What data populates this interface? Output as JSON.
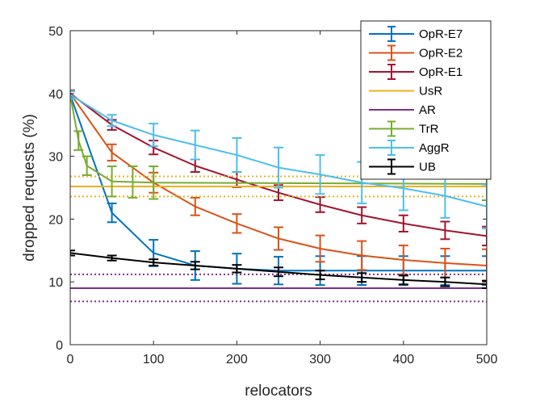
{
  "chart_data": {
    "type": "line",
    "title": "",
    "xlabel": "relocators",
    "ylabel": "dropped requests (%)",
    "xlim": [
      0,
      500
    ],
    "ylim": [
      0,
      50
    ],
    "xticks": [
      0,
      100,
      200,
      300,
      400,
      500
    ],
    "yticks": [
      0,
      10,
      20,
      30,
      40,
      50
    ],
    "grid": false,
    "legend_position": "top-right",
    "series": [
      {
        "name": "OpR-E7",
        "color": "#0072BD",
        "x": [
          0,
          50,
          100,
          150,
          200,
          250,
          300,
          350,
          400,
          450,
          500
        ],
        "y": [
          39.8,
          21,
          14.6,
          12.6,
          12.1,
          11.8,
          11.8,
          11.8,
          11.8,
          11.8,
          11.8
        ],
        "err": [
          0.6,
          1.5,
          2.1,
          2.3,
          2.4,
          2.2,
          2.3,
          2.3,
          2.3,
          2.3,
          2.3
        ]
      },
      {
        "name": "OpR-E2",
        "color": "#D95319",
        "x": [
          0,
          50,
          100,
          150,
          200,
          250,
          300,
          350,
          400,
          450,
          500
        ],
        "y": [
          40.0,
          30.6,
          25.8,
          22.0,
          19.3,
          16.9,
          15.3,
          14.2,
          13.5,
          13.0,
          12.6
        ],
        "err": [
          0.5,
          1.3,
          1.6,
          1.4,
          1.5,
          1.8,
          2.1,
          2.3,
          2.3,
          2.3,
          2.6
        ]
      },
      {
        "name": "OpR-E1",
        "color": "#A2142F",
        "x": [
          0,
          50,
          100,
          150,
          200,
          250,
          300,
          350,
          400,
          450,
          500
        ],
        "y": [
          40.0,
          35.0,
          31.4,
          28.5,
          26.3,
          24.2,
          22.3,
          20.6,
          19.3,
          18.2,
          17.3
        ],
        "err": [
          0.5,
          0.8,
          1.1,
          1.0,
          1.2,
          1.2,
          1.2,
          1.3,
          1.3,
          1.4,
          1.5
        ]
      },
      {
        "name": "UsR",
        "color": "#EDB120",
        "type": "constant",
        "y": 25.2,
        "band": [
          23.6,
          26.8
        ]
      },
      {
        "name": "AR",
        "color": "#7E2F8E",
        "type": "constant",
        "y": 9.0,
        "band": [
          6.9,
          11.2
        ]
      },
      {
        "name": "TrR",
        "color": "#77AC30",
        "x": [
          0,
          10,
          20,
          50,
          75,
          100,
          500
        ],
        "y": [
          39.8,
          32.5,
          28.5,
          26.0,
          25.9,
          25.8,
          25.6
        ],
        "err": [
          0.6,
          1.5,
          1.5,
          2.4,
          2.5,
          2.6,
          2.6
        ]
      },
      {
        "name": "AggR",
        "color": "#4DBEEE",
        "x": [
          0,
          50,
          100,
          150,
          200,
          250,
          300,
          350,
          400,
          450,
          500
        ],
        "y": [
          39.8,
          35.7,
          33.4,
          31.8,
          30.2,
          28.2,
          27.1,
          25.8,
          24.9,
          23.7,
          22.0
        ],
        "err": [
          0.6,
          0.9,
          1.8,
          2.3,
          2.7,
          3.2,
          3.1,
          3.3,
          3.5,
          3.5,
          3.5
        ]
      },
      {
        "name": "UB",
        "color": "#000000",
        "x": [
          0,
          50,
          100,
          150,
          200,
          250,
          300,
          350,
          400,
          450,
          500
        ],
        "y": [
          14.6,
          13.8,
          13.1,
          12.6,
          12.1,
          11.6,
          11.1,
          10.7,
          10.3,
          10.0,
          9.6
        ],
        "err": [
          0.4,
          0.4,
          0.5,
          0.6,
          0.6,
          0.7,
          0.7,
          0.7,
          0.7,
          0.7,
          0.6
        ]
      }
    ]
  }
}
